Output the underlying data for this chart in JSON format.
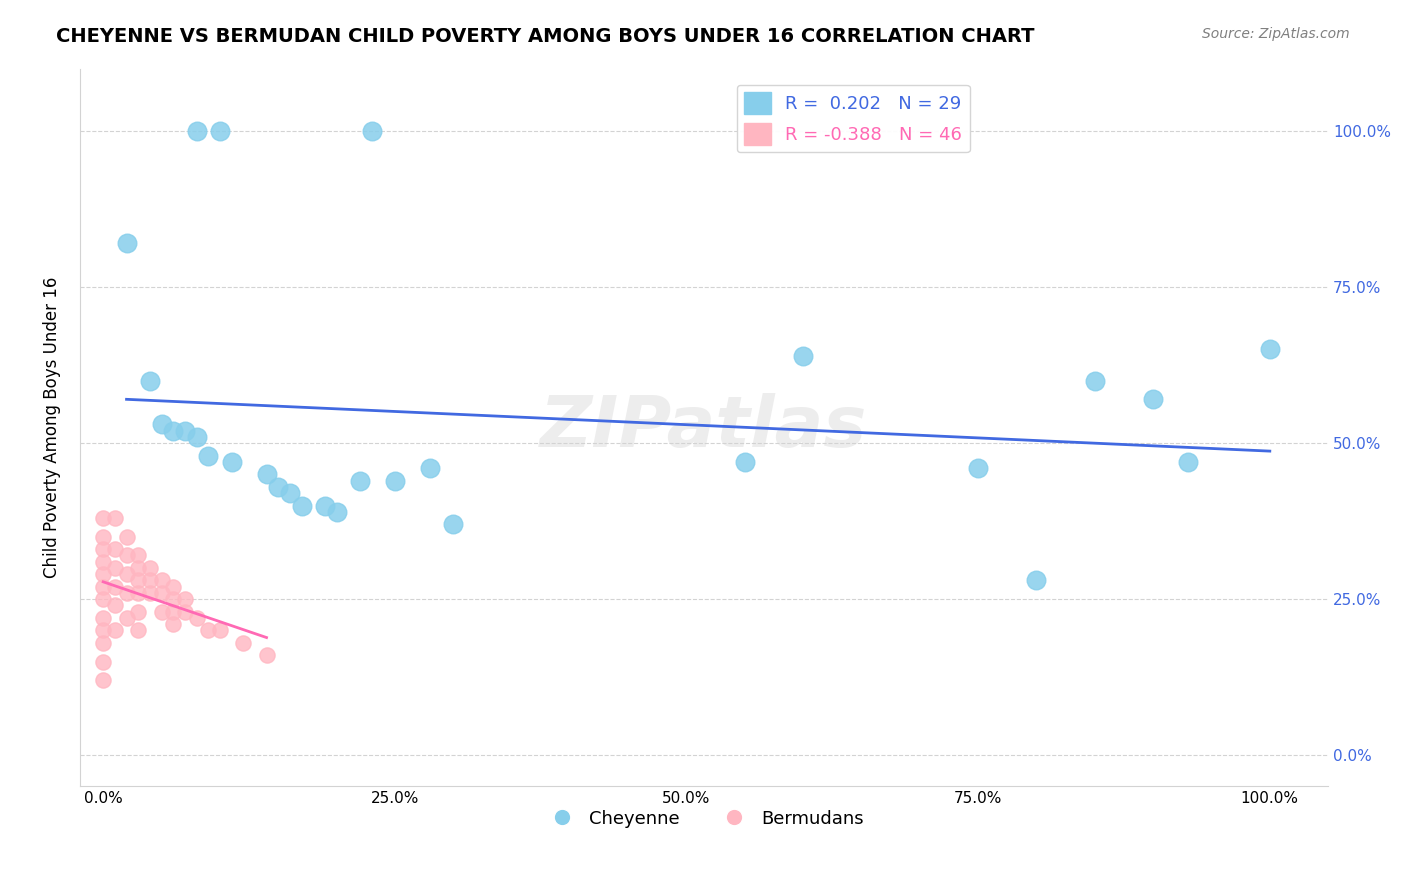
{
  "title": "CHEYENNE VS BERMUDAN CHILD POVERTY AMONG BOYS UNDER 16 CORRELATION CHART",
  "source": "Source: ZipAtlas.com",
  "ylabel": "Child Poverty Among Boys Under 16",
  "cheyenne_color": "#87CEEB",
  "bermudans_color": "#FFB6C1",
  "cheyenne_line_color": "#4169E1",
  "bermudans_line_color": "#FF69B4",
  "cheyenne_R": 0.202,
  "cheyenne_N": 29,
  "bermudans_R": -0.388,
  "bermudans_N": 46,
  "watermark": "ZIPatlas",
  "cheyenne_x": [
    0.08,
    0.1,
    0.23,
    0.02,
    0.04,
    0.05,
    0.06,
    0.07,
    0.08,
    0.09,
    0.11,
    0.14,
    0.15,
    0.16,
    0.17,
    0.19,
    0.2,
    0.22,
    0.25,
    0.28,
    0.3,
    0.55,
    0.6,
    0.75,
    0.8,
    0.85,
    0.9,
    0.93,
    1.0
  ],
  "cheyenne_y": [
    1.0,
    1.0,
    1.0,
    0.82,
    0.6,
    0.53,
    0.52,
    0.52,
    0.51,
    0.48,
    0.47,
    0.45,
    0.43,
    0.42,
    0.4,
    0.4,
    0.39,
    0.44,
    0.44,
    0.46,
    0.37,
    0.47,
    0.64,
    0.46,
    0.28,
    0.6,
    0.57,
    0.47,
    0.65
  ],
  "bermudans_x": [
    0.0,
    0.0,
    0.0,
    0.0,
    0.0,
    0.0,
    0.0,
    0.0,
    0.0,
    0.0,
    0.0,
    0.0,
    0.01,
    0.01,
    0.01,
    0.01,
    0.01,
    0.01,
    0.02,
    0.02,
    0.02,
    0.02,
    0.02,
    0.03,
    0.03,
    0.03,
    0.03,
    0.03,
    0.03,
    0.04,
    0.04,
    0.04,
    0.05,
    0.05,
    0.05,
    0.06,
    0.06,
    0.06,
    0.06,
    0.07,
    0.07,
    0.08,
    0.09,
    0.1,
    0.12,
    0.14
  ],
  "bermudans_y": [
    0.38,
    0.35,
    0.33,
    0.31,
    0.29,
    0.27,
    0.25,
    0.22,
    0.2,
    0.18,
    0.15,
    0.12,
    0.38,
    0.33,
    0.3,
    0.27,
    0.24,
    0.2,
    0.35,
    0.32,
    0.29,
    0.26,
    0.22,
    0.32,
    0.3,
    0.28,
    0.26,
    0.23,
    0.2,
    0.3,
    0.28,
    0.26,
    0.28,
    0.26,
    0.23,
    0.27,
    0.25,
    0.23,
    0.21,
    0.25,
    0.23,
    0.22,
    0.2,
    0.2,
    0.18,
    0.16
  ],
  "yticks": [
    0.0,
    0.25,
    0.5,
    0.75,
    1.0
  ],
  "ytick_labels": [
    "0.0%",
    "25.0%",
    "50.0%",
    "75.0%",
    "100.0%"
  ],
  "xticks": [
    0.0,
    0.25,
    0.5,
    0.75,
    1.0
  ],
  "xtick_labels": [
    "0.0%",
    "25.0%",
    "50.0%",
    "75.0%",
    "100.0%"
  ],
  "xlim": [
    -0.02,
    1.05
  ],
  "ylim": [
    -0.05,
    1.1
  ]
}
